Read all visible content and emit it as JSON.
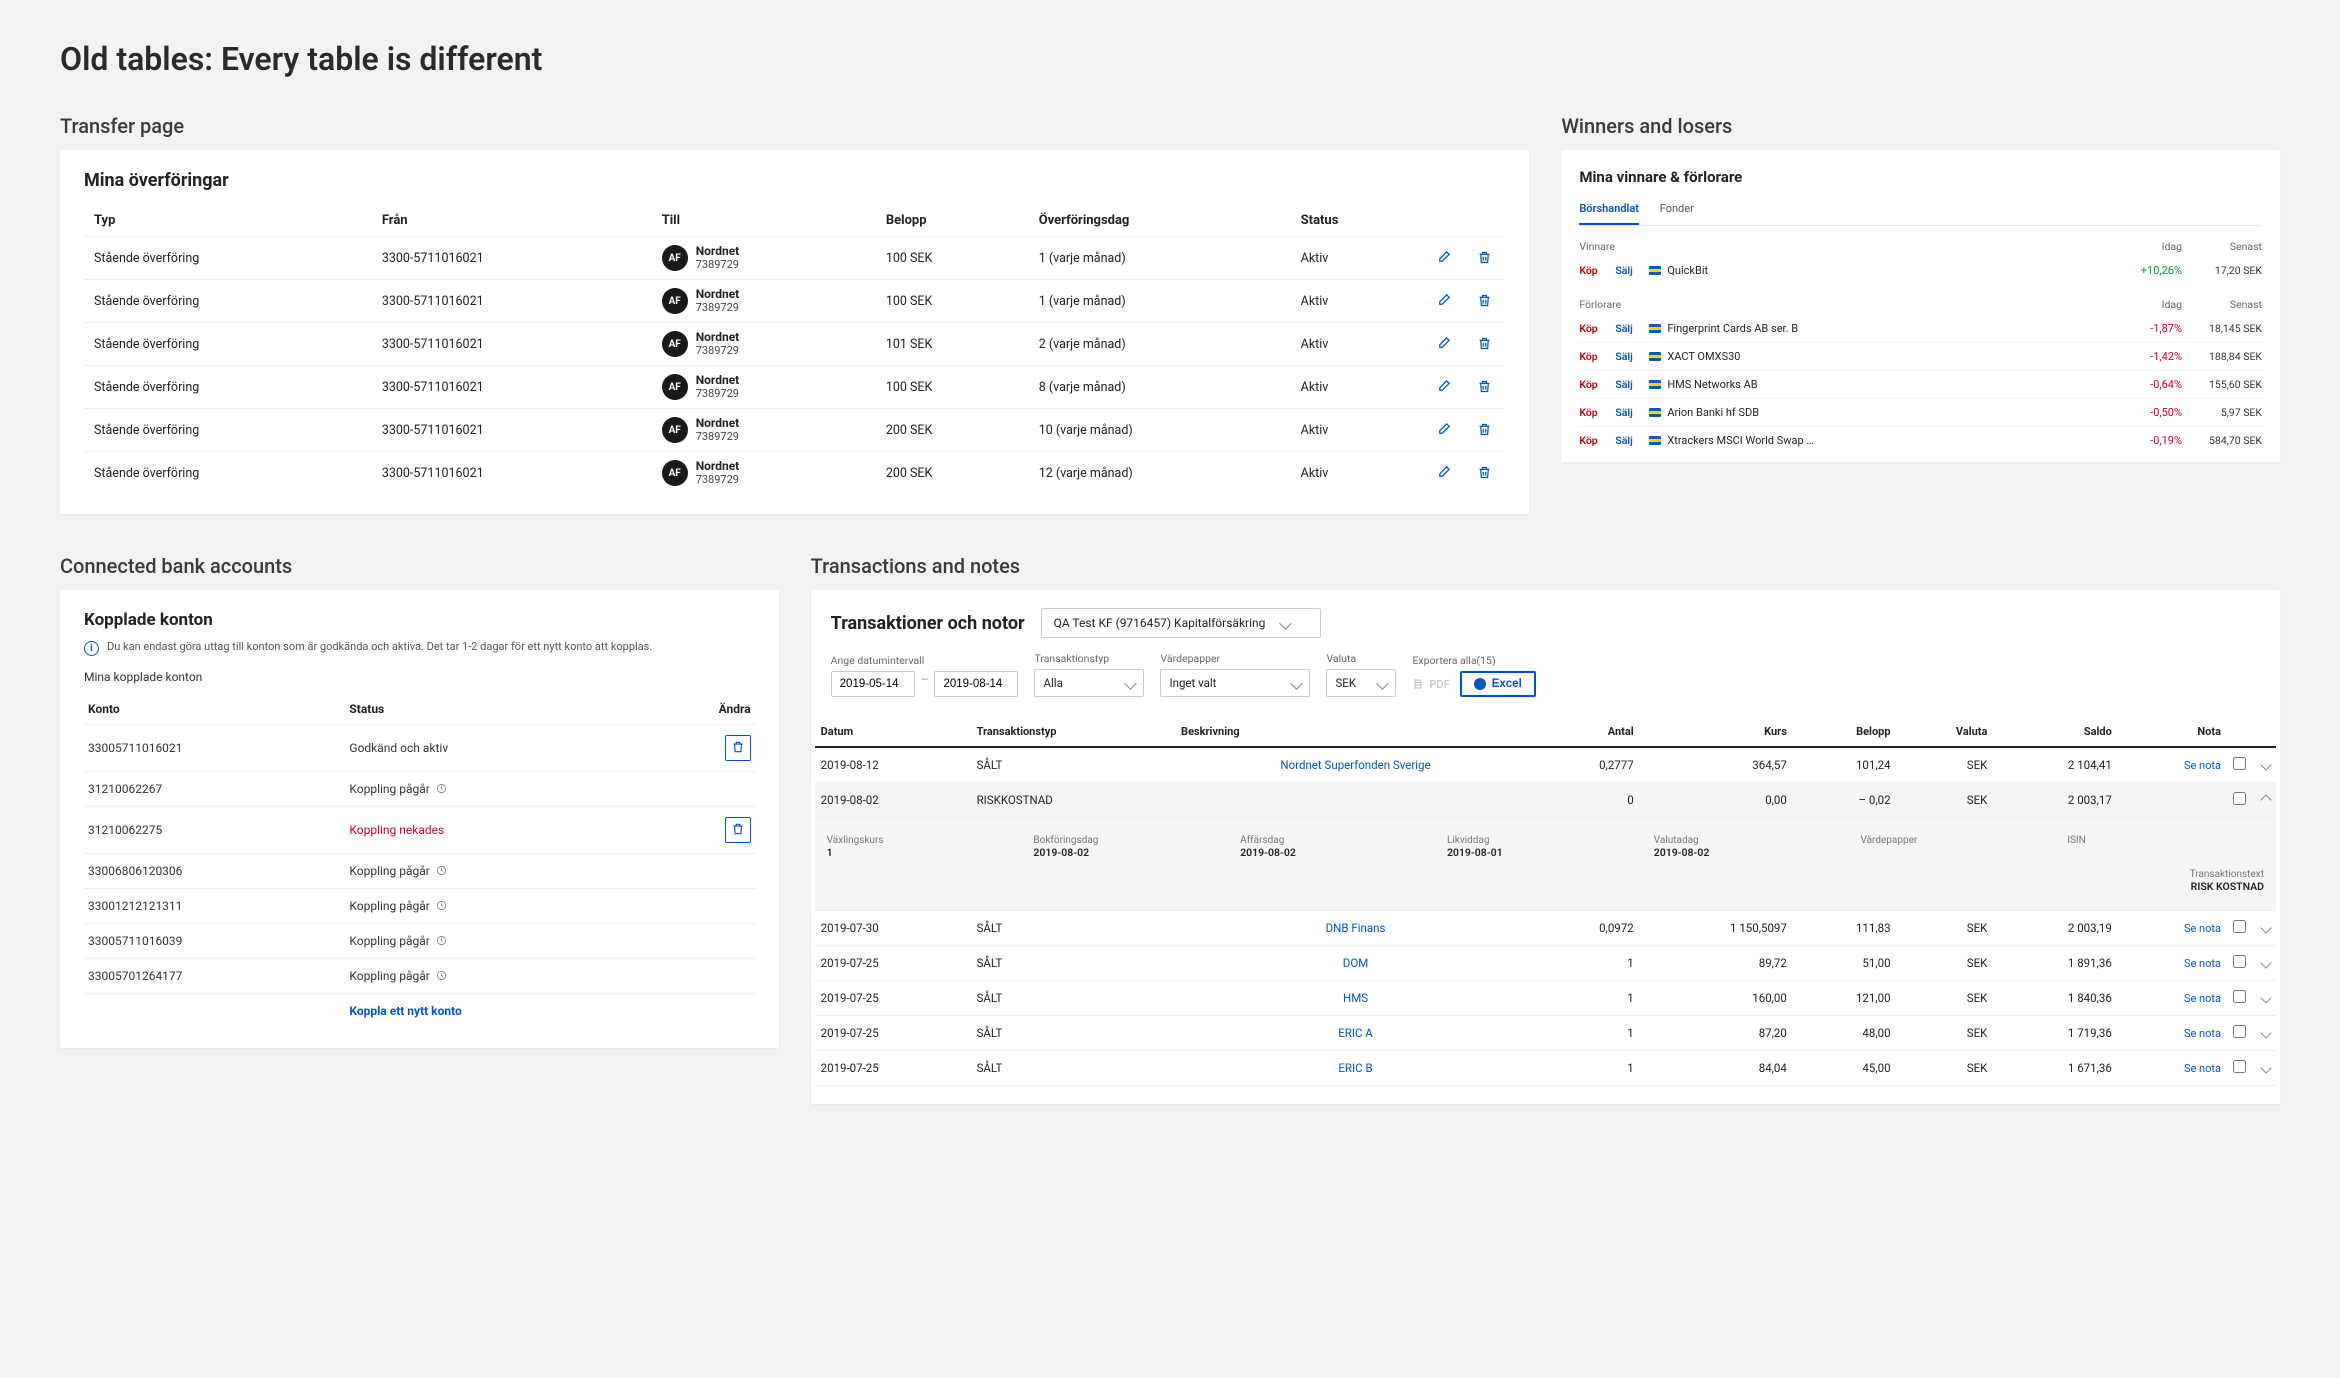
{
  "colors": {
    "page_bg": "#f2f2f2",
    "card_bg": "#ffffff",
    "text": "#222222",
    "link_blue": "#0055c8",
    "negative": "#cc0033",
    "positive": "#009933",
    "border": "#eeeeee"
  },
  "page_title": "Old tables: Every table is different",
  "transfer": {
    "section_label": "Transfer page",
    "title": "Mina överföringar",
    "columns": {
      "typ": "Typ",
      "fran": "Från",
      "till": "Till",
      "belopp": "Belopp",
      "overforingsdag": "Överföringsdag",
      "status": "Status"
    },
    "till_chip": {
      "code": "AF",
      "name": "Nordnet",
      "number": "7389729"
    },
    "rows": [
      {
        "typ": "Stående överföring",
        "fran": "3300-5711016021",
        "belopp": "100 SEK",
        "dag": "1 (varje månad)",
        "status": "Aktiv"
      },
      {
        "typ": "Stående överföring",
        "fran": "3300-5711016021",
        "belopp": "100 SEK",
        "dag": "1 (varje månad)",
        "status": "Aktiv"
      },
      {
        "typ": "Stående överföring",
        "fran": "3300-5711016021",
        "belopp": "101 SEK",
        "dag": "2 (varje månad)",
        "status": "Aktiv"
      },
      {
        "typ": "Stående överföring",
        "fran": "3300-5711016021",
        "belopp": "100 SEK",
        "dag": "8 (varje månad)",
        "status": "Aktiv"
      },
      {
        "typ": "Stående överföring",
        "fran": "3300-5711016021",
        "belopp": "200 SEK",
        "dag": "10 (varje månad)",
        "status": "Aktiv"
      },
      {
        "typ": "Stående överföring",
        "fran": "3300-5711016021",
        "belopp": "200 SEK",
        "dag": "12 (varje månad)",
        "status": "Aktiv"
      }
    ]
  },
  "winners": {
    "section_label": "Winners and losers",
    "title": "Mina vinnare & förlorare",
    "tabs": {
      "borshandlat": "Börshandlat",
      "fonder": "Fonder"
    },
    "active_tab": "Börshandlat",
    "kop_label": "Köp",
    "salj_label": "Sälj",
    "head_winners": "Vinnare",
    "head_losers": "Förlorare",
    "col_idag": "Idag",
    "col_senast": "Senast",
    "winners_rows": [
      {
        "name": "QuickBit",
        "idag": "+10,26%",
        "senast": "17,20 SEK",
        "sign": "pos"
      }
    ],
    "losers_rows": [
      {
        "name": "Fingerprint Cards AB ser. B",
        "idag": "-1,87%",
        "senast": "18,145 SEK",
        "sign": "neg"
      },
      {
        "name": "XACT OMXS30",
        "idag": "-1,42%",
        "senast": "188,84 SEK",
        "sign": "neg"
      },
      {
        "name": "HMS Networks AB",
        "idag": "-0,64%",
        "senast": "155,60 SEK",
        "sign": "neg"
      },
      {
        "name": "Arion Banki hf SDB",
        "idag": "-0,50%",
        "senast": "5,97 SEK",
        "sign": "neg"
      },
      {
        "name": "Xtrackers MSCI World Swap …",
        "idag": "-0,19%",
        "senast": "584,70 SEK",
        "sign": "neg"
      }
    ]
  },
  "accounts": {
    "section_label": "Connected bank accounts",
    "title": "Kopplade konton",
    "info_text": "Du kan endast göra uttag till konton som är godkända och aktiva. Det tar 1-2 dagar för ett nytt konto att kopplas.",
    "subtitle": "Mina kopplade konton",
    "columns": {
      "konto": "Konto",
      "status": "Status",
      "andra": "Ändra"
    },
    "status_labels": {
      "active": "Godkänd och aktiv",
      "pending": "Koppling pågår",
      "denied": "Koppling nekades"
    },
    "new_link": "Koppla ett nytt konto",
    "rows": [
      {
        "konto": "33005711016021",
        "status": "active",
        "has_trash": true
      },
      {
        "konto": "31210062267",
        "status": "pending",
        "has_trash": false
      },
      {
        "konto": "31210062275",
        "status": "denied",
        "has_trash": true
      },
      {
        "konto": "33006806120306",
        "status": "pending",
        "has_trash": false
      },
      {
        "konto": "33001212121311",
        "status": "pending",
        "has_trash": false
      },
      {
        "konto": "33005711016039",
        "status": "pending",
        "has_trash": false
      },
      {
        "konto": "33005701264177",
        "status": "pending",
        "has_trash": false
      }
    ]
  },
  "transactions": {
    "section_label": "Transactions and notes",
    "title": "Transaktioner och notor",
    "account_select": "QA Test KF (9716457) Kapitalförsäkring",
    "filter_labels": {
      "date": "Ange datumintervall",
      "type": "Transaktionstyp",
      "security": "Värdepapper",
      "currency": "Valuta",
      "export": "Exportera alla(15)"
    },
    "filters": {
      "from": "2019-05-14",
      "to": "2019-08-14",
      "type": "Alla",
      "security": "Inget valt",
      "currency": "SEK"
    },
    "export": {
      "pdf": "PDF",
      "excel": "Excel"
    },
    "columns": {
      "datum": "Datum",
      "typ": "Transaktionstyp",
      "beskrivning": "Beskrivning",
      "antal": "Antal",
      "kurs": "Kurs",
      "belopp": "Belopp",
      "valuta": "Valuta",
      "saldo": "Saldo",
      "nota": "Nota"
    },
    "nota_label": "Se nota",
    "rows": [
      {
        "datum": "2019-08-12",
        "typ": "SÅLT",
        "beskrivning": "Nordnet Superfonden Sverige",
        "link": true,
        "antal": "0,2777",
        "kurs": "364,57",
        "belopp": "101,24",
        "valuta": "SEK",
        "saldo": "2 104,41",
        "nota": true,
        "expanded": false
      },
      {
        "datum": "2019-08-02",
        "typ": "RISKKOSTNAD",
        "beskrivning": "",
        "link": false,
        "antal": "0",
        "kurs": "0,00",
        "belopp": "– 0,02",
        "valuta": "SEK",
        "saldo": "2 003,17",
        "nota": false,
        "expanded": true
      },
      {
        "datum": "2019-07-30",
        "typ": "SÅLT",
        "beskrivning": "DNB Finans",
        "link": true,
        "antal": "0,0972",
        "kurs": "1 150,5097",
        "belopp": "111,83",
        "valuta": "SEK",
        "saldo": "2 003,19",
        "nota": true,
        "expanded": false
      },
      {
        "datum": "2019-07-25",
        "typ": "SÅLT",
        "beskrivning": "DOM",
        "link": true,
        "antal": "1",
        "kurs": "89,72",
        "belopp": "51,00",
        "valuta": "SEK",
        "saldo": "1 891,36",
        "nota": true,
        "expanded": false
      },
      {
        "datum": "2019-07-25",
        "typ": "SÅLT",
        "beskrivning": "HMS",
        "link": true,
        "antal": "1",
        "kurs": "160,00",
        "belopp": "121,00",
        "valuta": "SEK",
        "saldo": "1 840,36",
        "nota": true,
        "expanded": false
      },
      {
        "datum": "2019-07-25",
        "typ": "SÅLT",
        "beskrivning": "ERIC A",
        "link": true,
        "antal": "1",
        "kurs": "87,20",
        "belopp": "48,00",
        "valuta": "SEK",
        "saldo": "1 719,36",
        "nota": true,
        "expanded": false
      },
      {
        "datum": "2019-07-25",
        "typ": "SÅLT",
        "beskrivning": "ERIC B",
        "link": true,
        "antal": "1",
        "kurs": "84,04",
        "belopp": "45,00",
        "valuta": "SEK",
        "saldo": "1 671,36",
        "nota": true,
        "expanded": false
      }
    ],
    "expanded_detail": {
      "vaxlingskurs": {
        "lab": "Växlingskurs",
        "val": "1"
      },
      "bokforingsdag": {
        "lab": "Bokföringsdag",
        "val": "2019-08-02"
      },
      "affarsdag": {
        "lab": "Affärsdag",
        "val": "2019-08-02"
      },
      "likviddag": {
        "lab": "Likviddag",
        "val": "2019-08-01"
      },
      "valutadag": {
        "lab": "Valutadag",
        "val": "2019-08-02"
      },
      "vardepapper": {
        "lab": "Värdepapper",
        "val": ""
      },
      "isin": {
        "lab": "ISIN",
        "val": ""
      },
      "transtext": {
        "lab": "Transaktionstext",
        "val": "RISK KOSTNAD"
      }
    }
  }
}
